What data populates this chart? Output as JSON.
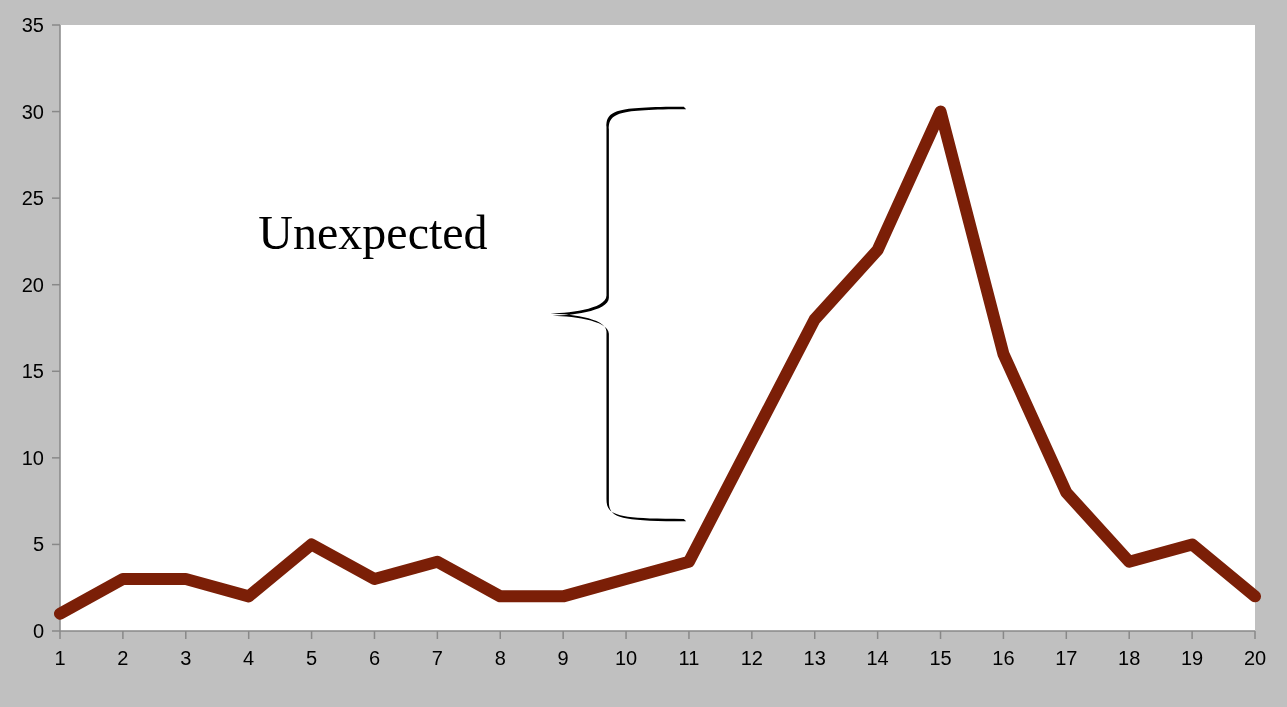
{
  "chart_data": {
    "type": "line",
    "x": [
      1,
      2,
      3,
      4,
      5,
      6,
      7,
      8,
      9,
      10,
      11,
      12,
      13,
      14,
      15,
      16,
      17,
      18,
      19,
      20
    ],
    "series": [
      {
        "color": "#7b1f07",
        "values": [
          1,
          3,
          3,
          2,
          5,
          3,
          4,
          2,
          2,
          3,
          4,
          11,
          18,
          22,
          30,
          16,
          8,
          4,
          5,
          2
        ]
      }
    ],
    "xlim": [
      1,
      20
    ],
    "xticks": [
      1,
      2,
      3,
      4,
      5,
      6,
      7,
      8,
      9,
      10,
      11,
      12,
      13,
      14,
      15,
      16,
      17,
      18,
      19,
      20
    ],
    "ylim": [
      0,
      35
    ],
    "yticks": [
      0,
      5,
      10,
      15,
      20,
      25,
      30,
      35
    ],
    "grid": false,
    "marker": "none",
    "line_style": "solid",
    "annotations": [
      "Unexpected"
    ]
  }
}
